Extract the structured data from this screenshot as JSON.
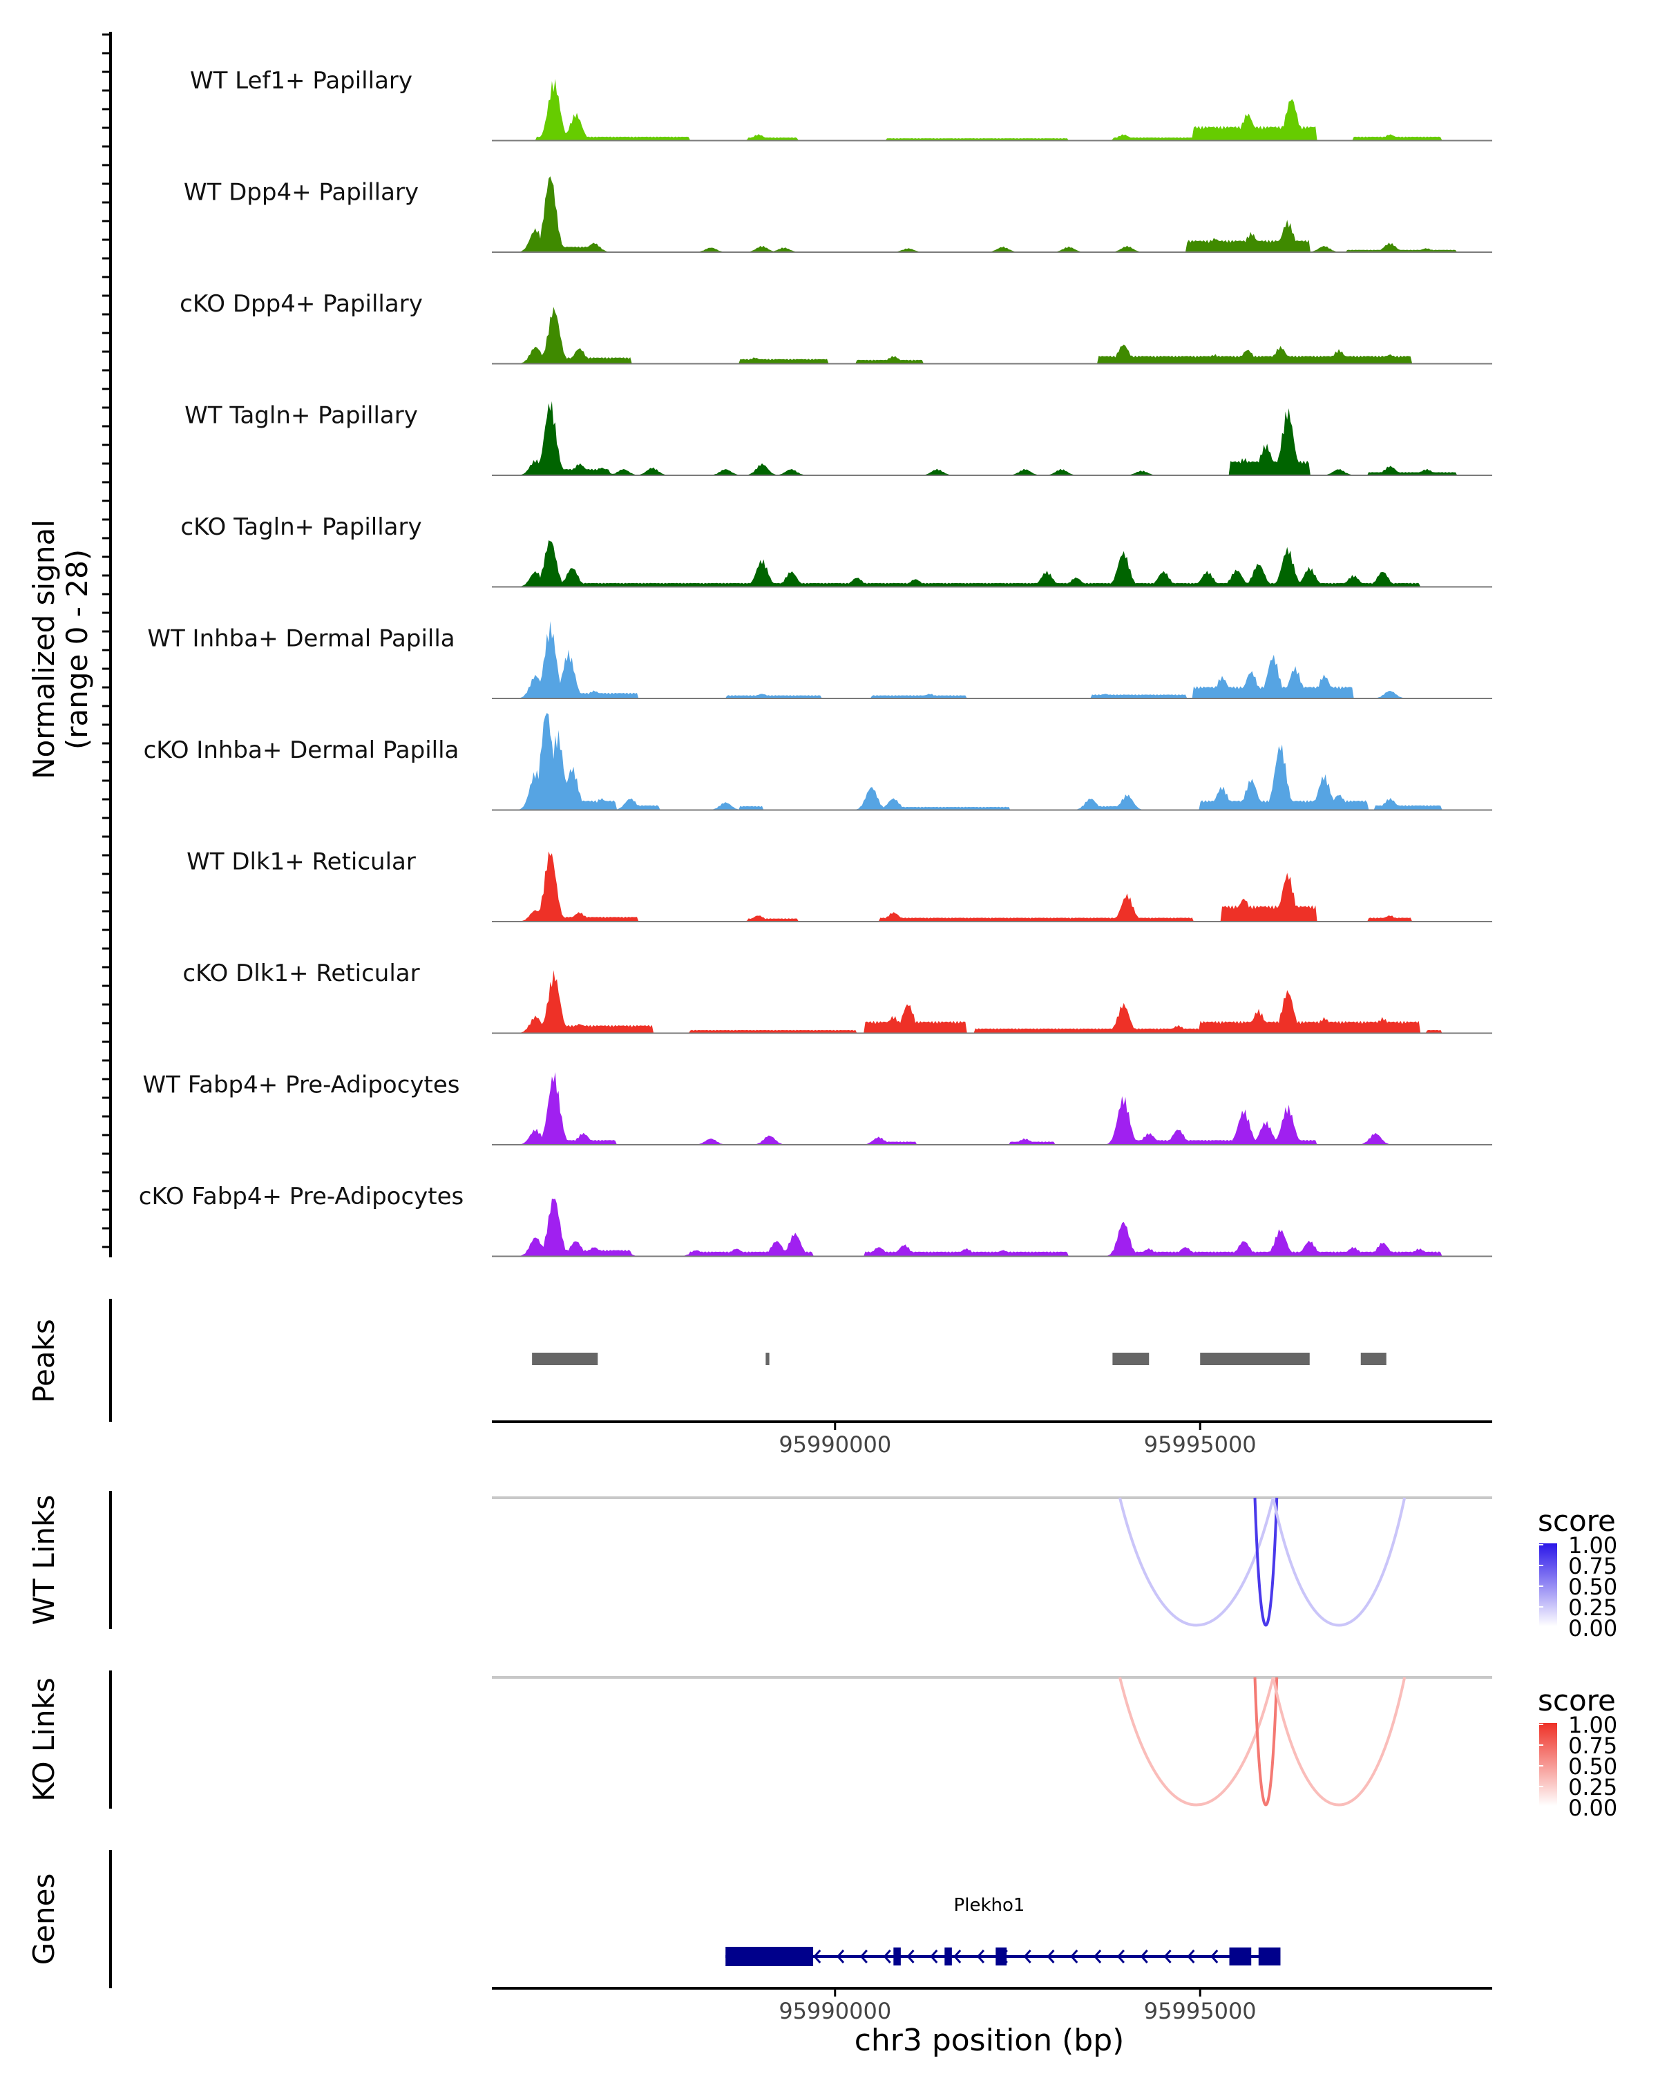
{
  "chart_data": {
    "type": "genome-coverage-plot",
    "y_axis_title": "Normalized signal",
    "y_axis_range_label": "(range 0 - 28)",
    "y_range": [
      0,
      28
    ],
    "x_range": [
      95985300,
      95999000
    ],
    "tracks": [
      {
        "label": "WT Lef1+ Papillary",
        "color": "#66cc00",
        "peaks": [
          [
            95986150,
            0.78
          ],
          [
            95986450,
            0.35
          ],
          [
            95988950,
            0.08
          ],
          [
            95993950,
            0.08
          ],
          [
            95995200,
            0.18
          ],
          [
            95995650,
            0.35
          ],
          [
            95996250,
            0.55
          ],
          [
            95997600,
            0.08
          ]
        ],
        "base": [
          [
            95985900,
            95988000,
            0.05
          ],
          [
            95988800,
            95989500,
            0.04
          ],
          [
            95990700,
            95993200,
            0.03
          ],
          [
            95993800,
            95994900,
            0.04
          ],
          [
            95994900,
            95996600,
            0.18
          ],
          [
            95997100,
            95998300,
            0.05
          ]
        ]
      },
      {
        "label": "WT Dpp4+ Papillary",
        "color": "#3f8a00",
        "peaks": [
          [
            95986100,
            1.0
          ],
          [
            95985900,
            0.3
          ],
          [
            95986700,
            0.12
          ],
          [
            95988300,
            0.06
          ],
          [
            95989000,
            0.08
          ],
          [
            95989300,
            0.06
          ],
          [
            95991000,
            0.05
          ],
          [
            95992300,
            0.07
          ],
          [
            95993200,
            0.07
          ],
          [
            95994000,
            0.08
          ],
          [
            95995200,
            0.18
          ],
          [
            95995700,
            0.25
          ],
          [
            95996200,
            0.4
          ],
          [
            95996700,
            0.08
          ],
          [
            95997600,
            0.12
          ],
          [
            95998100,
            0.05
          ]
        ],
        "base": [
          [
            95985900,
            95986700,
            0.07
          ],
          [
            95994800,
            95996500,
            0.15
          ],
          [
            95997000,
            95998500,
            0.03
          ]
        ]
      },
      {
        "label": "cKO Dpp4+ Papillary",
        "color": "#3f8a00",
        "peaks": [
          [
            95986150,
            0.72
          ],
          [
            95985900,
            0.22
          ],
          [
            95986500,
            0.2
          ],
          [
            95988900,
            0.08
          ],
          [
            95990800,
            0.1
          ],
          [
            95993950,
            0.25
          ],
          [
            95994700,
            0.1
          ],
          [
            95995200,
            0.12
          ],
          [
            95995650,
            0.18
          ],
          [
            95996100,
            0.22
          ],
          [
            95996900,
            0.18
          ],
          [
            95997600,
            0.12
          ]
        ],
        "base": [
          [
            95985800,
            95987200,
            0.08
          ],
          [
            95988700,
            95989900,
            0.06
          ],
          [
            95990300,
            95991200,
            0.05
          ],
          [
            95993600,
            95997900,
            0.1
          ]
        ]
      },
      {
        "label": "WT Tagln+ Papillary",
        "color": "#006400",
        "peaks": [
          [
            95986100,
            0.95
          ],
          [
            95985900,
            0.2
          ],
          [
            95986500,
            0.15
          ],
          [
            95986800,
            0.1
          ],
          [
            95987100,
            0.08
          ],
          [
            95987500,
            0.1
          ],
          [
            95988500,
            0.08
          ],
          [
            95989000,
            0.15
          ],
          [
            95989400,
            0.08
          ],
          [
            95991400,
            0.08
          ],
          [
            95992600,
            0.08
          ],
          [
            95993100,
            0.08
          ],
          [
            95994200,
            0.06
          ],
          [
            95995600,
            0.22
          ],
          [
            95995900,
            0.4
          ],
          [
            95996200,
            0.85
          ],
          [
            95996900,
            0.08
          ],
          [
            95997600,
            0.12
          ],
          [
            95998100,
            0.08
          ]
        ],
        "base": [
          [
            95985800,
            95986900,
            0.08
          ],
          [
            95995400,
            95996500,
            0.18
          ],
          [
            95997300,
            95998500,
            0.04
          ]
        ]
      },
      {
        "label": "cKO Tagln+ Papillary",
        "color": "#006400",
        "peaks": [
          [
            95986100,
            0.62
          ],
          [
            95985900,
            0.2
          ],
          [
            95986400,
            0.25
          ],
          [
            95989000,
            0.35
          ],
          [
            95989400,
            0.2
          ],
          [
            95990300,
            0.12
          ],
          [
            95991100,
            0.1
          ],
          [
            95992900,
            0.2
          ],
          [
            95993300,
            0.12
          ],
          [
            95993950,
            0.45
          ],
          [
            95994500,
            0.2
          ],
          [
            95995100,
            0.2
          ],
          [
            95995500,
            0.22
          ],
          [
            95995800,
            0.3
          ],
          [
            95996200,
            0.5
          ],
          [
            95996500,
            0.25
          ],
          [
            95997100,
            0.15
          ],
          [
            95997500,
            0.2
          ]
        ],
        "base": [
          [
            95985800,
            95998000,
            0.05
          ]
        ]
      },
      {
        "label": "WT Inhba+ Dermal Papilla",
        "color": "#56a4e3",
        "peaks": [
          [
            95986100,
            0.95
          ],
          [
            95985900,
            0.3
          ],
          [
            95986350,
            0.6
          ],
          [
            95986700,
            0.1
          ],
          [
            95989000,
            0.06
          ],
          [
            95991300,
            0.06
          ],
          [
            95993700,
            0.06
          ],
          [
            95995300,
            0.28
          ],
          [
            95995700,
            0.35
          ],
          [
            95996000,
            0.55
          ],
          [
            95996300,
            0.4
          ],
          [
            95996700,
            0.3
          ],
          [
            95997600,
            0.1
          ]
        ],
        "base": [
          [
            95985800,
            95987300,
            0.07
          ],
          [
            95988500,
            95989800,
            0.04
          ],
          [
            95990500,
            95991800,
            0.04
          ],
          [
            95993500,
            95994800,
            0.05
          ],
          [
            95994900,
            95997100,
            0.15
          ]
        ]
      },
      {
        "label": "cKO Inhba+ Dermal Papilla",
        "color": "#56a4e3",
        "peaks": [
          [
            95986050,
            1.3
          ],
          [
            95986200,
            1.0
          ],
          [
            95985900,
            0.5
          ],
          [
            95986400,
            0.55
          ],
          [
            95986800,
            0.15
          ],
          [
            95987200,
            0.15
          ],
          [
            95988500,
            0.1
          ],
          [
            95990500,
            0.3
          ],
          [
            95990800,
            0.15
          ],
          [
            95993500,
            0.15
          ],
          [
            95994000,
            0.2
          ],
          [
            95995300,
            0.3
          ],
          [
            95995700,
            0.4
          ],
          [
            95996100,
            0.85
          ],
          [
            95996700,
            0.45
          ],
          [
            95996900,
            0.2
          ],
          [
            95997600,
            0.15
          ]
        ],
        "base": [
          [
            95985800,
            95987000,
            0.12
          ],
          [
            95987100,
            95987600,
            0.06
          ],
          [
            95988700,
            95989000,
            0.05
          ],
          [
            95990400,
            95992400,
            0.04
          ],
          [
            95993400,
            95994100,
            0.05
          ],
          [
            95995000,
            95997300,
            0.12
          ],
          [
            95997400,
            95998300,
            0.06
          ]
        ]
      },
      {
        "label": "WT Dlk1+ Reticular",
        "color": "#ee3127",
        "peaks": [
          [
            95986100,
            0.92
          ],
          [
            95985900,
            0.15
          ],
          [
            95986500,
            0.12
          ],
          [
            95988950,
            0.08
          ],
          [
            95990800,
            0.12
          ],
          [
            95994000,
            0.35
          ],
          [
            95995600,
            0.3
          ],
          [
            95996200,
            0.62
          ],
          [
            95997600,
            0.08
          ]
        ],
        "base": [
          [
            95985800,
            95987300,
            0.06
          ],
          [
            95988800,
            95989500,
            0.04
          ],
          [
            95990600,
            95994900,
            0.05
          ],
          [
            95995300,
            95996600,
            0.2
          ],
          [
            95997300,
            95997900,
            0.05
          ]
        ]
      },
      {
        "label": "cKO Dlk1+ Reticular",
        "color": "#ee3127",
        "peaks": [
          [
            95986150,
            0.78
          ],
          [
            95985900,
            0.22
          ],
          [
            95986500,
            0.12
          ],
          [
            95990800,
            0.22
          ],
          [
            95991000,
            0.38
          ],
          [
            95993950,
            0.38
          ],
          [
            95994700,
            0.1
          ],
          [
            95995800,
            0.3
          ],
          [
            95996200,
            0.55
          ],
          [
            95996700,
            0.2
          ],
          [
            95997500,
            0.2
          ]
        ],
        "base": [
          [
            95985800,
            95987500,
            0.1
          ],
          [
            95988000,
            95990300,
            0.04
          ],
          [
            95990400,
            95991800,
            0.15
          ],
          [
            95991900,
            95995000,
            0.06
          ],
          [
            95995000,
            95998000,
            0.15
          ],
          [
            95998100,
            95998300,
            0.04
          ]
        ]
      },
      {
        "label": "WT Fabp4+ Pre-Adipocytes",
        "color": "#a020f0",
        "peaks": [
          [
            95986150,
            0.92
          ],
          [
            95985900,
            0.2
          ],
          [
            95986550,
            0.15
          ],
          [
            95988300,
            0.08
          ],
          [
            95989100,
            0.12
          ],
          [
            95990600,
            0.1
          ],
          [
            95992600,
            0.08
          ],
          [
            95993950,
            0.62
          ],
          [
            95994300,
            0.15
          ],
          [
            95994700,
            0.2
          ],
          [
            95995600,
            0.45
          ],
          [
            95995900,
            0.3
          ],
          [
            95996200,
            0.5
          ],
          [
            95997400,
            0.15
          ]
        ],
        "base": [
          [
            95985800,
            95987000,
            0.06
          ],
          [
            95990600,
            95991100,
            0.04
          ],
          [
            95992400,
            95993000,
            0.04
          ],
          [
            95993800,
            95996600,
            0.06
          ]
        ]
      },
      {
        "label": "cKO Fabp4+ Pre-Adipocytes",
        "color": "#a020f0",
        "peaks": [
          [
            95986150,
            0.78
          ],
          [
            95985900,
            0.25
          ],
          [
            95986450,
            0.2
          ],
          [
            95986700,
            0.12
          ],
          [
            95987100,
            0.08
          ],
          [
            95988100,
            0.08
          ],
          [
            95988650,
            0.1
          ],
          [
            95989200,
            0.2
          ],
          [
            95989450,
            0.3
          ],
          [
            95990600,
            0.12
          ],
          [
            95990950,
            0.15
          ],
          [
            95991800,
            0.1
          ],
          [
            95992300,
            0.08
          ],
          [
            95993950,
            0.45
          ],
          [
            95994300,
            0.1
          ],
          [
            95994800,
            0.12
          ],
          [
            95995600,
            0.2
          ],
          [
            95996100,
            0.35
          ],
          [
            95996500,
            0.2
          ],
          [
            95997100,
            0.12
          ],
          [
            95997500,
            0.18
          ],
          [
            95998000,
            0.1
          ]
        ],
        "base": [
          [
            95985800,
            95987200,
            0.08
          ],
          [
            95988000,
            95989700,
            0.06
          ],
          [
            95990400,
            95993200,
            0.06
          ],
          [
            95993800,
            95998300,
            0.06
          ]
        ]
      }
    ],
    "peaks_panel": {
      "title": "Peaks",
      "regions": [
        [
          95985850,
          95986750
        ],
        [
          95989050,
          95989100
        ],
        [
          95993800,
          95994300
        ],
        [
          95995000,
          95996500
        ],
        [
          95997200,
          95997550
        ]
      ]
    },
    "x_ticks": [
      95990000,
      95995000
    ],
    "x_tick_labels": [
      "95990000",
      "95995000"
    ],
    "links_panels": [
      {
        "title": "WT Links",
        "legend_title": "score",
        "legend_ticks": [
          "1.00",
          "0.75",
          "0.50",
          "0.25",
          "0.00"
        ],
        "low_color": "#ffffff",
        "high_color": "#2a16e8",
        "links": [
          [
            95993900,
            95996000,
            0.25
          ],
          [
            95995750,
            95996050,
            0.85
          ],
          [
            95996000,
            95997800,
            0.25
          ]
        ]
      },
      {
        "title": "KO Links",
        "legend_title": "score",
        "legend_ticks": [
          "1.00",
          "0.75",
          "0.50",
          "0.25",
          "0.00"
        ],
        "low_color": "#ffffff",
        "high_color": "#ee3127",
        "links": [
          [
            95993900,
            95996000,
            0.32
          ],
          [
            95995750,
            95996050,
            0.65
          ],
          [
            95996000,
            95997800,
            0.32
          ]
        ]
      }
    ],
    "genes_panel": {
      "title": "Genes",
      "gene_name": "Plekho1",
      "color": "#00008b",
      "line": [
        95988500,
        95996100
      ],
      "exons": [
        [
          95988500,
          95989700,
          "utr"
        ],
        [
          95990800,
          95990900,
          "cds"
        ],
        [
          95991500,
          95991600,
          "cds"
        ],
        [
          95992200,
          95992350,
          "cds"
        ],
        [
          95995400,
          95995700,
          "cds"
        ],
        [
          95995800,
          95996100,
          "cds"
        ]
      ]
    },
    "xlabel": "chr3 position (bp)"
  }
}
